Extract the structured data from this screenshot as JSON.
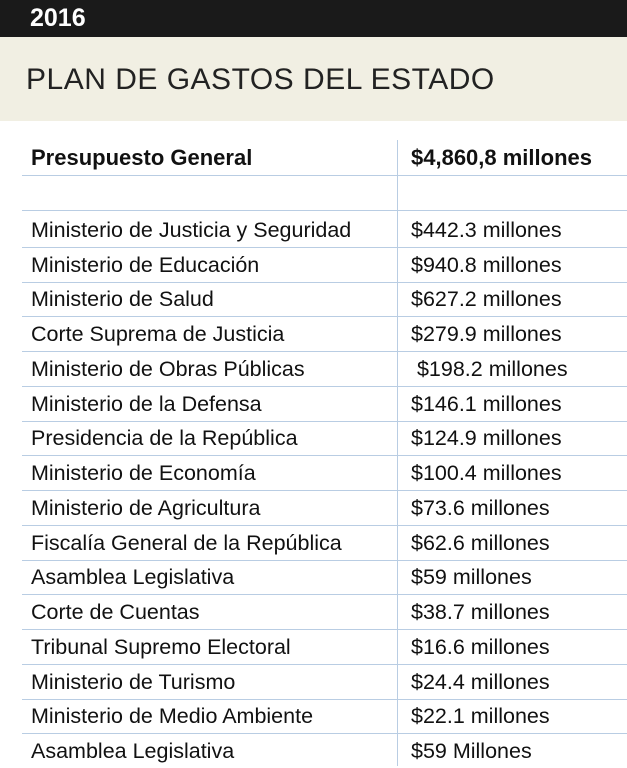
{
  "year": "2016",
  "title": "PLAN DE GASTOS DEL ESTADO",
  "header": {
    "label": "Presupuesto General",
    "value": "$4,860,8 millones"
  },
  "rows": [
    {
      "name": "Ministerio de Justicia y Seguridad",
      "amount": "$442.3 millones"
    },
    {
      "name": "Ministerio de Educación",
      "amount": "$940.8 millones"
    },
    {
      "name": "Ministerio de Salud",
      "amount": "$627.2 millones"
    },
    {
      "name": "Corte Suprema de Justicia",
      "amount": "$279.9 millones"
    },
    {
      "name": "Ministerio de Obras Públicas",
      "amount": " $198.2 millones"
    },
    {
      "name": "Ministerio de la Defensa",
      "amount": "$146.1 millones"
    },
    {
      "name": "Presidencia de la República",
      "amount": "$124.9 millones"
    },
    {
      "name": "Ministerio de Economía",
      "amount": "$100.4 millones"
    },
    {
      "name": "Ministerio de Agricultura",
      "amount": "$73.6 millones"
    },
    {
      "name": "Fiscalía General de la República",
      "amount": "$62.6 millones"
    },
    {
      "name": "Asamblea Legislativa",
      "amount": "$59 millones"
    },
    {
      "name": "Corte de Cuentas",
      "amount": "$38.7 millones"
    },
    {
      "name": "Tribunal Supremo Electoral",
      "amount": "$16.6 millones"
    },
    {
      "name": "Ministerio de Turismo",
      "amount": "$24.4 millones"
    },
    {
      "name": "Ministerio de Medio Ambiente",
      "amount": "$22.1 millones"
    },
    {
      "name": "Asamblea Legislativa",
      "amount": "$59 Millones"
    }
  ]
}
